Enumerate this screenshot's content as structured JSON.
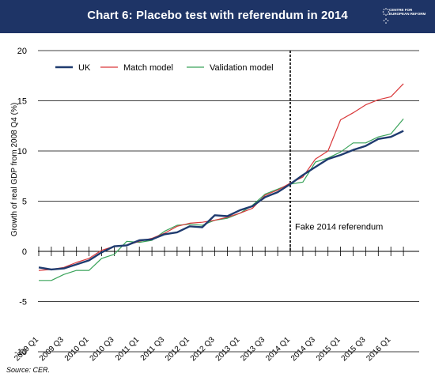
{
  "header": {
    "title": "Chart 6: Placebo test with referendum in 2014",
    "logo_text": "CENTRE FOR EUROPEAN REFORM"
  },
  "source": "Source: CER.",
  "colors": {
    "header_bg": "#1e3466",
    "uk": "#1f3b6f",
    "match": "#d9383a",
    "validation": "#3aa35a"
  },
  "chart_data": {
    "type": "line",
    "title": "Chart 6: Placebo test with referendum in 2014",
    "ylabel": "Growth of real GDP from 2008 Q4 (%)",
    "xlabel": "",
    "ylim": [
      -10,
      20
    ],
    "yticks": [
      -10,
      -5,
      0,
      5,
      10,
      15,
      20
    ],
    "yticklabels": [
      "-10",
      "-5",
      "0",
      "5",
      "10",
      "15",
      "20"
    ],
    "grid": "horizontal",
    "legend": "top-left",
    "x": [
      "2009 Q1",
      "2009 Q2",
      "2009 Q3",
      "2009 Q4",
      "2010 Q1",
      "2010 Q2",
      "2010 Q3",
      "2010 Q4",
      "2011 Q1",
      "2011 Q2",
      "2011 Q3",
      "2011 Q4",
      "2012 Q1",
      "2012 Q2",
      "2012 Q3",
      "2012 Q4",
      "2013 Q1",
      "2013 Q2",
      "2013 Q3",
      "2013 Q4",
      "2014 Q1",
      "2014 Q2",
      "2014 Q3",
      "2014 Q4",
      "2015 Q1",
      "2015 Q2",
      "2015 Q3",
      "2015 Q4",
      "2016 Q1",
      "2016 Q2"
    ],
    "xticklabels": [
      "2009 Q1",
      "2009 Q3",
      "2010 Q1",
      "2010 Q3",
      "2011 Q1",
      "2011 Q3",
      "2012 Q1",
      "2012 Q3",
      "2013 Q1",
      "2013 Q3",
      "2014 Q1",
      "2014 Q3",
      "2015 Q1",
      "2015 Q3",
      "2016 Q1"
    ],
    "series": [
      {
        "name": "UK",
        "values": [
          -1.6,
          -1.8,
          -1.7,
          -1.3,
          -0.9,
          -0.1,
          0.5,
          0.6,
          1.1,
          1.2,
          1.7,
          1.9,
          2.5,
          2.4,
          3.6,
          3.5,
          4.1,
          4.5,
          5.4,
          5.9,
          6.7,
          7.6,
          8.4,
          9.2,
          9.6,
          10.1,
          10.5,
          11.2,
          11.4,
          12.0
        ]
      },
      {
        "name": "Match model",
        "values": [
          -1.9,
          -1.8,
          -1.6,
          -1.1,
          -0.7,
          0.1,
          0.5,
          0.6,
          1.0,
          1.3,
          1.8,
          2.5,
          2.8,
          2.9,
          3.1,
          3.4,
          3.8,
          4.3,
          5.6,
          6.1,
          6.8,
          7.4,
          9.2,
          10.0,
          13.1,
          13.8,
          14.6,
          15.1,
          15.4,
          16.7
        ]
      },
      {
        "name": "Validation model",
        "values": [
          -2.9,
          -2.9,
          -2.3,
          -1.9,
          -1.9,
          -0.7,
          -0.3,
          1.0,
          0.9,
          1.1,
          2.0,
          2.6,
          2.7,
          2.6,
          3.1,
          3.3,
          3.8,
          4.6,
          5.7,
          6.2,
          6.7,
          6.9,
          8.9,
          9.3,
          9.9,
          10.8,
          10.8,
          11.4,
          11.7,
          13.2
        ]
      }
    ],
    "annotations": [
      {
        "text": "Fake 2014 referendum",
        "x": "2014 Q1",
        "style": "dashed vertical line"
      }
    ]
  }
}
